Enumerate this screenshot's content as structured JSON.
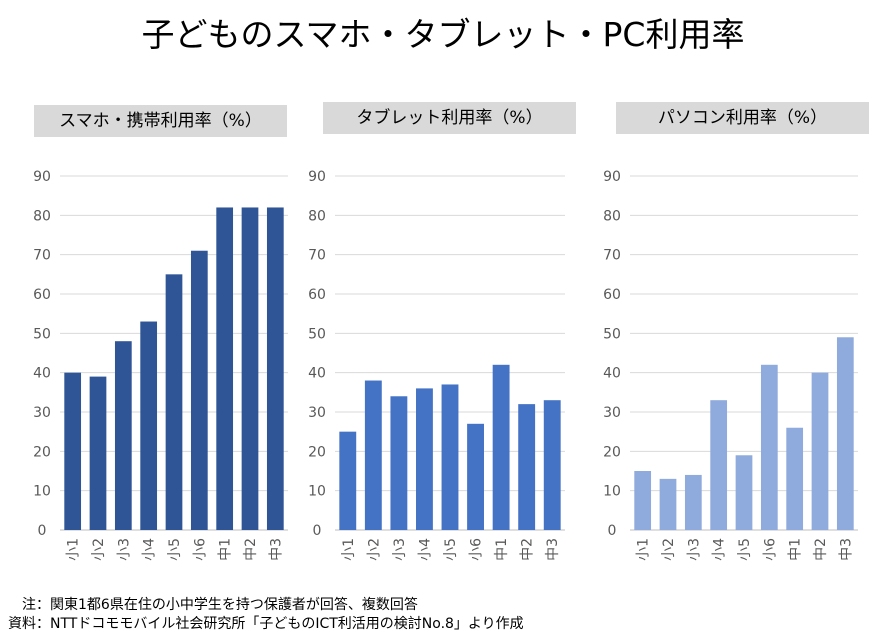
{
  "title": "子どものスマホ・タブレット・PC利用率",
  "chart_data": [
    {
      "type": "bar",
      "title": "スマホ・携帯利用率（%）",
      "categories": [
        "小1",
        "小2",
        "小3",
        "小4",
        "小5",
        "小6",
        "中1",
        "中2",
        "中3"
      ],
      "values": [
        40,
        39,
        48,
        53,
        65,
        71,
        82,
        82,
        82
      ],
      "ylim": [
        0,
        90
      ],
      "yticks": [
        0,
        10,
        20,
        30,
        40,
        50,
        60,
        70,
        80,
        90
      ],
      "color": "#2f5597",
      "grid": true
    },
    {
      "type": "bar",
      "title": "タブレット利用率（%）",
      "categories": [
        "小1",
        "小2",
        "小3",
        "小4",
        "小5",
        "小6",
        "中1",
        "中2",
        "中3"
      ],
      "values": [
        25,
        38,
        34,
        36,
        37,
        27,
        42,
        32,
        33
      ],
      "ylim": [
        0,
        90
      ],
      "yticks": [
        0,
        10,
        20,
        30,
        40,
        50,
        60,
        70,
        80,
        90
      ],
      "color": "#4472c4",
      "grid": true
    },
    {
      "type": "bar",
      "title": "パソコン利用率（%）",
      "categories": [
        "小1",
        "小2",
        "小3",
        "小4",
        "小5",
        "小6",
        "中1",
        "中2",
        "中3"
      ],
      "values": [
        15,
        13,
        14,
        33,
        19,
        42,
        26,
        40,
        49
      ],
      "ylim": [
        0,
        90
      ],
      "yticks": [
        0,
        10,
        20,
        30,
        40,
        50,
        60,
        70,
        80,
        90
      ],
      "color": "#8faadc",
      "grid": true
    }
  ],
  "notes": {
    "note": "　注：関東1都6県在住の小中学生を持つ保護者が回答、複数回答",
    "source": "資料：NTTドコモモバイル社会研究所「子どものICT利活用の検討No.8」より作成"
  }
}
